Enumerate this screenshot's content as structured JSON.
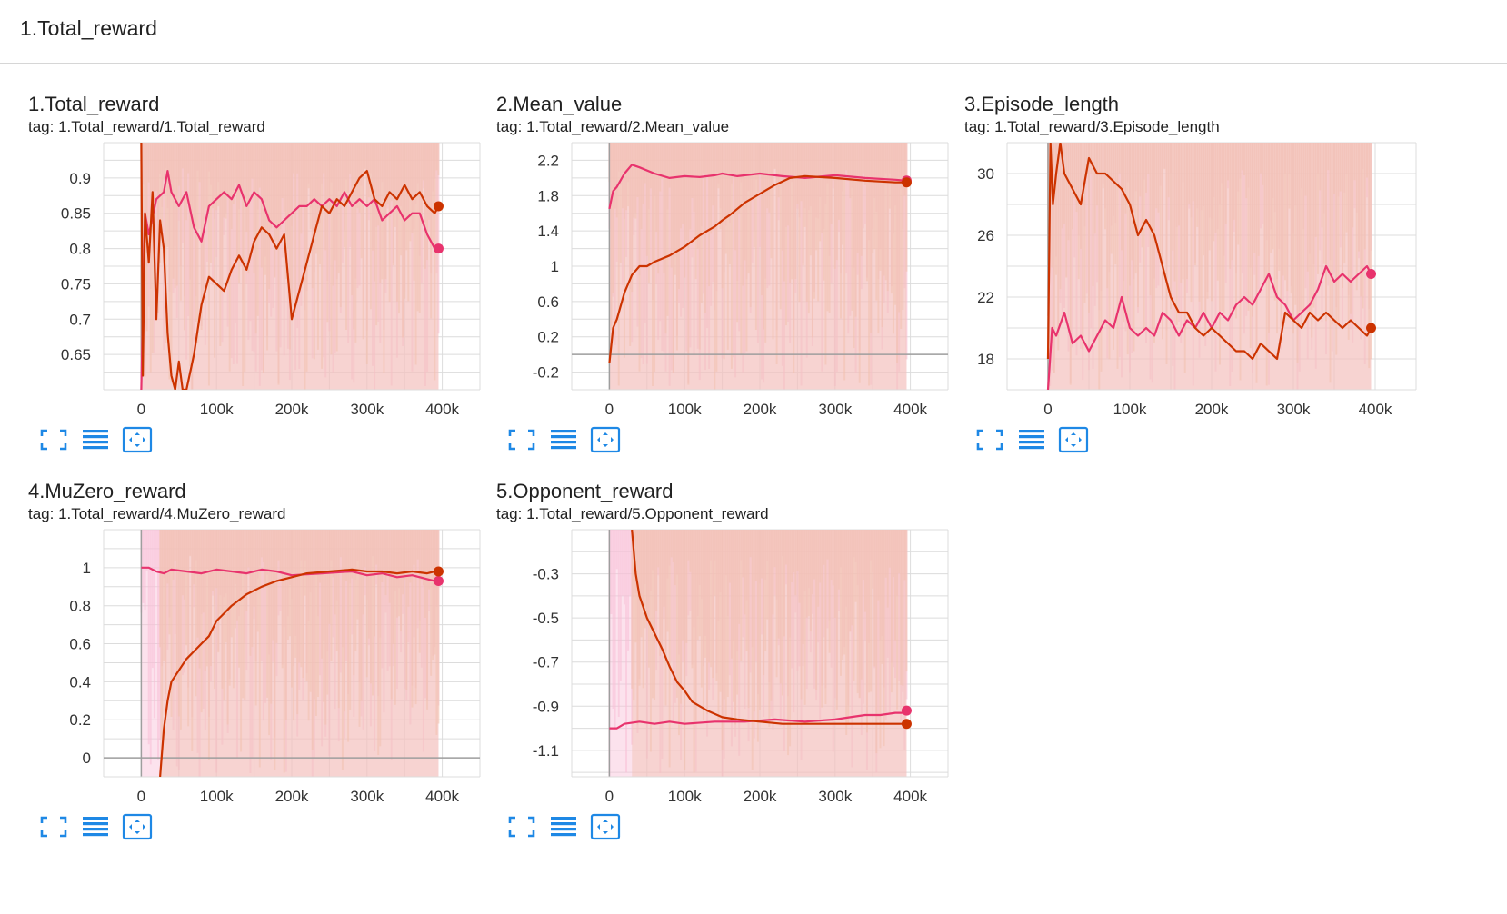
{
  "group": {
    "title": "1.Total_reward"
  },
  "colors": {
    "pink": "#e8336d",
    "orange": "#cc3300",
    "pink_band": "#f8bfd6",
    "orange_band": "#f2c2b0",
    "grid": "#dcdcdc",
    "axis": "#9e9e9e",
    "icon": "#1e88e5"
  },
  "toolbar_icons": [
    "fullscreen-icon",
    "toggle-log-scale-icon",
    "fit-domain-icon"
  ],
  "charts": [
    {
      "title": "1.Total_reward",
      "tag": "tag: 1.Total_reward/1.Total_reward",
      "chart_data": {
        "type": "line",
        "xlim": [
          -50000,
          450000
        ],
        "ylim": [
          0.6,
          0.95
        ],
        "xticks": [
          0,
          100000,
          200000,
          300000,
          400000
        ],
        "xticklabels": [
          "0",
          "100k",
          "200k",
          "300k",
          "400k"
        ],
        "yticks": [
          0.65,
          0.7,
          0.75,
          0.8,
          0.85,
          0.9
        ],
        "yticklabels": [
          "0.65",
          "0.7",
          "0.75",
          "0.8",
          "0.85",
          "0.9"
        ],
        "grid": true,
        "series": [
          {
            "color": "pink",
            "x": [
              0,
              5000,
              10000,
              20000,
              30000,
              35000,
              40000,
              50000,
              60000,
              70000,
              80000,
              90000,
              100000,
              110000,
              120000,
              130000,
              140000,
              150000,
              160000,
              170000,
              180000,
              190000,
              200000,
              210000,
              220000,
              230000,
              240000,
              250000,
              260000,
              270000,
              280000,
              290000,
              300000,
              310000,
              320000,
              330000,
              340000,
              350000,
              360000,
              370000,
              380000,
              385000,
              390000,
              395000
            ],
            "y": [
              0.6,
              0.85,
              0.82,
              0.87,
              0.88,
              0.91,
              0.88,
              0.86,
              0.88,
              0.83,
              0.81,
              0.86,
              0.87,
              0.88,
              0.87,
              0.89,
              0.86,
              0.88,
              0.87,
              0.84,
              0.83,
              0.84,
              0.85,
              0.86,
              0.86,
              0.87,
              0.86,
              0.87,
              0.86,
              0.88,
              0.86,
              0.87,
              0.86,
              0.87,
              0.84,
              0.85,
              0.86,
              0.84,
              0.85,
              0.85,
              0.82,
              0.81,
              0.8,
              0.8
            ]
          },
          {
            "color": "orange",
            "x": [
              0,
              2000,
              5000,
              10000,
              15000,
              20000,
              25000,
              30000,
              35000,
              40000,
              45000,
              50000,
              55000,
              60000,
              70000,
              80000,
              90000,
              100000,
              110000,
              120000,
              130000,
              140000,
              150000,
              160000,
              170000,
              180000,
              190000,
              200000,
              210000,
              220000,
              230000,
              240000,
              250000,
              260000,
              270000,
              280000,
              290000,
              300000,
              310000,
              320000,
              330000,
              340000,
              350000,
              360000,
              370000,
              380000,
              390000,
              395000
            ],
            "y": [
              0.95,
              0.62,
              0.85,
              0.78,
              0.88,
              0.7,
              0.84,
              0.8,
              0.68,
              0.62,
              0.6,
              0.64,
              0.6,
              0.6,
              0.65,
              0.72,
              0.76,
              0.75,
              0.74,
              0.77,
              0.79,
              0.77,
              0.81,
              0.83,
              0.82,
              0.8,
              0.82,
              0.7,
              0.74,
              0.78,
              0.82,
              0.86,
              0.85,
              0.87,
              0.86,
              0.88,
              0.9,
              0.91,
              0.87,
              0.86,
              0.88,
              0.87,
              0.89,
              0.87,
              0.88,
              0.86,
              0.85,
              0.86
            ]
          }
        ]
      }
    },
    {
      "title": "2.Mean_value",
      "tag": "tag: 1.Total_reward/2.Mean_value",
      "chart_data": {
        "type": "line",
        "xlim": [
          -50000,
          450000
        ],
        "ylim": [
          -0.4,
          2.4
        ],
        "xticks": [
          0,
          100000,
          200000,
          300000,
          400000
        ],
        "xticklabels": [
          "0",
          "100k",
          "200k",
          "300k",
          "400k"
        ],
        "yticks": [
          -0.2,
          0.2,
          0.6,
          1,
          1.4,
          1.8,
          2.2
        ],
        "yticklabels": [
          "-0.2",
          "0.2",
          "0.6",
          "1",
          "1.4",
          "1.8",
          "2.2"
        ],
        "grid": true,
        "series": [
          {
            "color": "pink",
            "x": [
              0,
              5000,
              10000,
              20000,
              30000,
              40000,
              60000,
              80000,
              100000,
              120000,
              140000,
              150000,
              170000,
              200000,
              230000,
              260000,
              300000,
              340000,
              380000,
              395000
            ],
            "y": [
              1.65,
              1.85,
              1.9,
              2.05,
              2.15,
              2.12,
              2.05,
              2.0,
              2.02,
              2.01,
              2.03,
              2.05,
              2.02,
              2.05,
              2.02,
              2.0,
              2.03,
              2.0,
              1.98,
              1.97
            ]
          },
          {
            "color": "orange",
            "x": [
              0,
              5000,
              10000,
              20000,
              30000,
              40000,
              50000,
              60000,
              80000,
              100000,
              120000,
              140000,
              150000,
              160000,
              180000,
              200000,
              220000,
              240000,
              260000,
              300000,
              340000,
              380000,
              395000
            ],
            "y": [
              -0.1,
              0.3,
              0.4,
              0.7,
              0.9,
              1.0,
              1.0,
              1.05,
              1.12,
              1.22,
              1.35,
              1.45,
              1.52,
              1.58,
              1.72,
              1.82,
              1.92,
              2.0,
              2.02,
              2.0,
              1.97,
              1.95,
              1.95
            ]
          }
        ]
      }
    },
    {
      "title": "3.Episode_length",
      "tag": "tag: 1.Total_reward/3.Episode_length",
      "chart_data": {
        "type": "line",
        "xlim": [
          -50000,
          450000
        ],
        "ylim": [
          16,
          32
        ],
        "xticks": [
          0,
          100000,
          200000,
          300000,
          400000
        ],
        "xticklabels": [
          "0",
          "100k",
          "200k",
          "300k",
          "400k"
        ],
        "yticks": [
          18,
          22,
          26,
          30
        ],
        "yticklabels": [
          "18",
          "22",
          "26",
          "30"
        ],
        "grid": true,
        "series": [
          {
            "color": "pink",
            "x": [
              0,
              5000,
              10000,
              20000,
              30000,
              40000,
              50000,
              60000,
              70000,
              80000,
              90000,
              100000,
              110000,
              120000,
              130000,
              140000,
              150000,
              160000,
              170000,
              180000,
              190000,
              200000,
              210000,
              220000,
              230000,
              240000,
              250000,
              260000,
              270000,
              280000,
              290000,
              300000,
              310000,
              320000,
              330000,
              340000,
              350000,
              360000,
              370000,
              380000,
              390000,
              395000
            ],
            "y": [
              16,
              20,
              19.5,
              21,
              19,
              19.5,
              18.5,
              19.5,
              20.5,
              20,
              22,
              20,
              19.5,
              20,
              19.5,
              21,
              20.5,
              19.5,
              20.5,
              20,
              21,
              20,
              21,
              20.5,
              21.5,
              22,
              21.5,
              22.5,
              23.5,
              22,
              21.5,
              20.5,
              21,
              21.5,
              22.5,
              24,
              23,
              23.5,
              23,
              23.5,
              24,
              23.5
            ]
          },
          {
            "color": "orange",
            "x": [
              0,
              3000,
              6000,
              10000,
              15000,
              20000,
              30000,
              40000,
              50000,
              60000,
              70000,
              80000,
              90000,
              100000,
              110000,
              120000,
              130000,
              140000,
              150000,
              160000,
              170000,
              180000,
              190000,
              200000,
              210000,
              220000,
              230000,
              240000,
              250000,
              260000,
              270000,
              280000,
              290000,
              300000,
              310000,
              320000,
              330000,
              340000,
              350000,
              360000,
              370000,
              380000,
              390000,
              395000
            ],
            "y": [
              18,
              32,
              28,
              30,
              32,
              30,
              29,
              28,
              31,
              30,
              30,
              29.5,
              29,
              28,
              26,
              27,
              26,
              24,
              22,
              21,
              21,
              20,
              19.5,
              20,
              19.5,
              19,
              18.5,
              18.5,
              18,
              19,
              18.5,
              18,
              21,
              20.5,
              20,
              21,
              20.5,
              21,
              20.5,
              20,
              20.5,
              20,
              19.5,
              20
            ]
          }
        ]
      }
    },
    {
      "title": "4.MuZero_reward",
      "tag": "tag: 1.Total_reward/4.MuZero_reward",
      "chart_data": {
        "type": "line",
        "xlim": [
          -50000,
          450000
        ],
        "ylim": [
          -0.1,
          1.2
        ],
        "xticks": [
          0,
          100000,
          200000,
          300000,
          400000
        ],
        "xticklabels": [
          "0",
          "100k",
          "200k",
          "300k",
          "400k"
        ],
        "yticks": [
          0,
          0.2,
          0.4,
          0.6,
          0.8,
          1
        ],
        "yticklabels": [
          "0",
          "0.2",
          "0.4",
          "0.6",
          "0.8",
          "1"
        ],
        "grid": true,
        "series": [
          {
            "color": "pink",
            "x": [
              0,
              10000,
              20000,
              30000,
              40000,
              60000,
              80000,
              100000,
              120000,
              140000,
              160000,
              180000,
              200000,
              240000,
              280000,
              300000,
              320000,
              340000,
              360000,
              380000,
              390000,
              395000
            ],
            "y": [
              1.0,
              1.0,
              0.98,
              0.97,
              0.99,
              0.98,
              0.97,
              0.99,
              0.98,
              0.97,
              0.99,
              0.98,
              0.96,
              0.97,
              0.98,
              0.96,
              0.97,
              0.95,
              0.96,
              0.94,
              0.93,
              0.93
            ]
          },
          {
            "color": "orange",
            "x": [
              25000,
              30000,
              35000,
              40000,
              50000,
              60000,
              70000,
              80000,
              90000,
              100000,
              110000,
              120000,
              140000,
              160000,
              180000,
              200000,
              220000,
              250000,
              280000,
              300000,
              320000,
              340000,
              360000,
              380000,
              390000,
              395000
            ],
            "y": [
              -0.1,
              0.15,
              0.3,
              0.4,
              0.46,
              0.52,
              0.56,
              0.6,
              0.64,
              0.72,
              0.76,
              0.8,
              0.86,
              0.9,
              0.93,
              0.95,
              0.97,
              0.98,
              0.99,
              0.98,
              0.98,
              0.97,
              0.98,
              0.97,
              0.98,
              0.98
            ]
          }
        ]
      }
    },
    {
      "title": "5.Opponent_reward",
      "tag": "tag: 1.Total_reward/5.Opponent_reward",
      "chart_data": {
        "type": "line",
        "xlim": [
          -50000,
          450000
        ],
        "ylim": [
          -1.22,
          -0.1
        ],
        "xticks": [
          0,
          100000,
          200000,
          300000,
          400000
        ],
        "xticklabels": [
          "0",
          "100k",
          "200k",
          "300k",
          "400k"
        ],
        "yticks": [
          -1.1,
          -0.9,
          -0.7,
          -0.5,
          -0.3
        ],
        "yticklabels": [
          "-1.1",
          "-0.9",
          "-0.7",
          "-0.5",
          "-0.3"
        ],
        "grid": true,
        "series": [
          {
            "color": "pink",
            "x": [
              0,
              10000,
              20000,
              40000,
              60000,
              80000,
              100000,
              140000,
              180000,
              220000,
              260000,
              300000,
              320000,
              340000,
              360000,
              380000,
              390000,
              395000
            ],
            "y": [
              -1.0,
              -1.0,
              -0.98,
              -0.97,
              -0.98,
              -0.97,
              -0.98,
              -0.97,
              -0.97,
              -0.96,
              -0.97,
              -0.96,
              -0.95,
              -0.94,
              -0.94,
              -0.93,
              -0.93,
              -0.92
            ]
          },
          {
            "color": "orange",
            "x": [
              30000,
              35000,
              40000,
              50000,
              60000,
              70000,
              80000,
              90000,
              100000,
              110000,
              130000,
              150000,
              170000,
              200000,
              230000,
              260000,
              300000,
              340000,
              380000,
              395000
            ],
            "y": [
              -0.1,
              -0.3,
              -0.4,
              -0.5,
              -0.57,
              -0.64,
              -0.72,
              -0.79,
              -0.83,
              -0.88,
              -0.92,
              -0.95,
              -0.96,
              -0.97,
              -0.98,
              -0.98,
              -0.98,
              -0.98,
              -0.98,
              -0.98
            ]
          }
        ]
      }
    }
  ]
}
